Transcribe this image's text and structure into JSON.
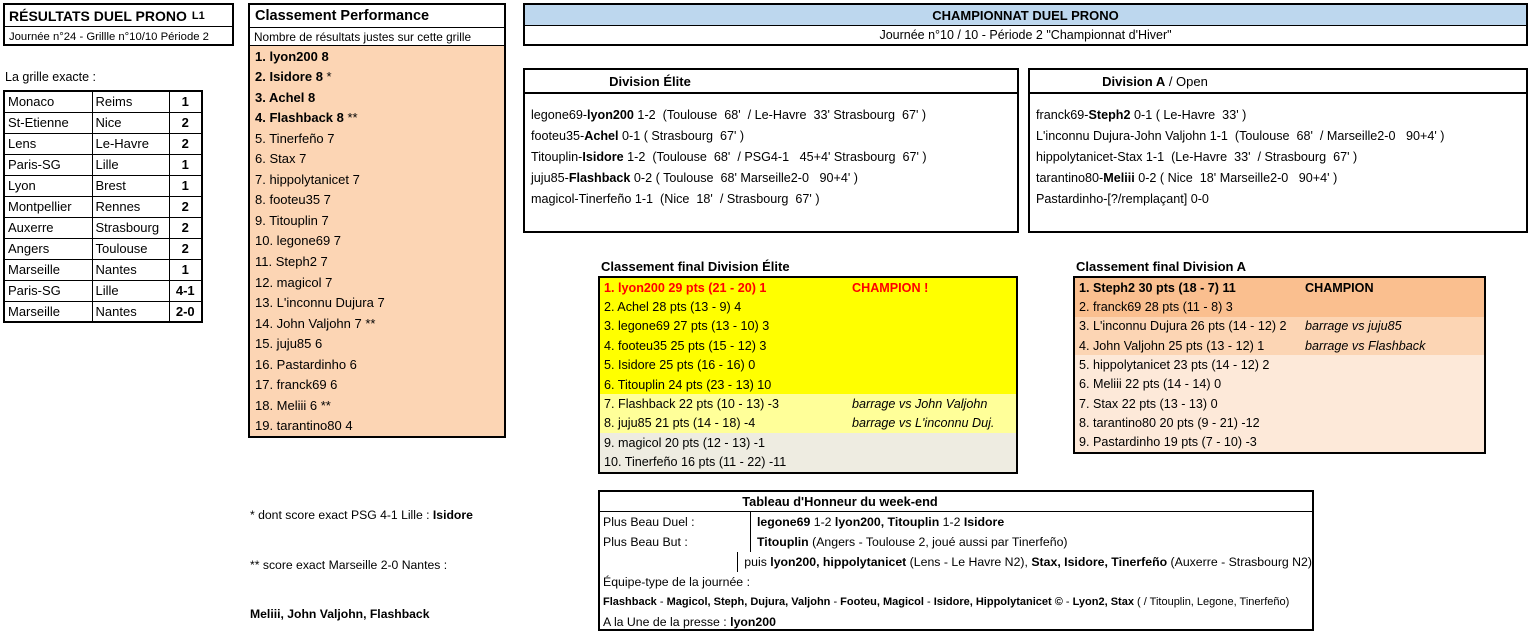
{
  "colors": {
    "yellow": "#FFFF00",
    "paleYellow": "#FFFF99",
    "beige": "#EEECE1",
    "orange": "#FFC000",
    "blue": "#BDD7EE",
    "peach": "#FCD5B4",
    "orangeT1": "#FABF8F",
    "orangeT2": "#FCD5B4",
    "orangeT3": "#FDE9D9",
    "red": "#FF0000"
  },
  "results": {
    "title": "RÉSULTATS DUEL PRONO",
    "league": "L1",
    "subtitle": "Journée n°24 - Grillle n°10/10 Période 2"
  },
  "grille": {
    "label": "La grille exacte :",
    "rows": [
      {
        "home": "Monaco",
        "away": "Reims",
        "result": "1",
        "highlight": "yellow"
      },
      {
        "home": "St-Etienne",
        "away": "Nice",
        "result": "2",
        "highlight": "yellow"
      },
      {
        "home": "Lens",
        "away": "Le-Havre",
        "result": "2",
        "highlight": "yellow"
      },
      {
        "home": "Paris-SG",
        "away": "Lille",
        "result": "1",
        "highlight": "yellow"
      },
      {
        "home": "Lyon",
        "away": "Brest",
        "result": "1",
        "highlight": "yellow"
      },
      {
        "home": "Montpellier",
        "away": "Rennes",
        "result": "2",
        "highlight": "yellow"
      },
      {
        "home": "Auxerre",
        "away": "Strasbourg",
        "result": "2",
        "highlight": "yellow"
      },
      {
        "home": "Angers",
        "away": "Toulouse",
        "result": "2",
        "highlight": "yellow"
      },
      {
        "home": "Marseille",
        "away": "Nantes",
        "result": "1",
        "highlight": "yellow"
      },
      {
        "home": "Paris-SG",
        "away": "Lille",
        "result": "4-1",
        "highlight": "orange"
      },
      {
        "home": "Marseille",
        "away": "Nantes",
        "result": "2-0",
        "highlight": "orange"
      }
    ]
  },
  "performance": {
    "title": "Classement Performance",
    "subtitle": "Nombre de résultats justes sur cette grille",
    "rows": [
      {
        "segments": [
          {
            "t": "1. lyon200 8",
            "b": true
          }
        ]
      },
      {
        "segments": [
          {
            "t": "2. Isidore 8 ",
            "b": true
          },
          {
            "t": "*"
          }
        ]
      },
      {
        "segments": [
          {
            "t": "3. Achel 8",
            "b": true
          }
        ]
      },
      {
        "segments": [
          {
            "t": "4. Flashback 8 ",
            "b": true
          },
          {
            "t": "**"
          }
        ]
      },
      {
        "segments": [
          {
            "t": "5. Tinerfeño 7"
          }
        ]
      },
      {
        "segments": [
          {
            "t": "6. Stax 7"
          }
        ]
      },
      {
        "segments": [
          {
            "t": "7. hippolytanicet 7"
          }
        ]
      },
      {
        "segments": [
          {
            "t": "8. footeu35 7"
          }
        ]
      },
      {
        "segments": [
          {
            "t": "9. Titouplin 7"
          }
        ]
      },
      {
        "segments": [
          {
            "t": "10. legone69 7"
          }
        ]
      },
      {
        "segments": [
          {
            "t": "11. Steph2 7"
          }
        ]
      },
      {
        "segments": [
          {
            "t": "12. magicol 7"
          }
        ]
      },
      {
        "segments": [
          {
            "t": "13. L'inconnu Dujura 7"
          }
        ]
      },
      {
        "segments": [
          {
            "t": "14. John Valjohn 7 **"
          }
        ]
      },
      {
        "segments": [
          {
            "t": "15. juju85 6"
          }
        ]
      },
      {
        "segments": [
          {
            "t": "16. Pastardinho 6"
          }
        ]
      },
      {
        "segments": [
          {
            "t": "17. franck69 6"
          }
        ]
      },
      {
        "segments": [
          {
            "t": "18. Meliii 6 **"
          }
        ]
      },
      {
        "segments": [
          {
            "t": "19. tarantino80 4"
          }
        ]
      }
    ]
  },
  "footnotes": {
    "lines": [
      {
        "segments": [
          {
            "t": "* dont score exact PSG 4-1 Lille : "
          },
          {
            "t": "Isidore",
            "b": true
          }
        ]
      },
      {
        "segments": [
          {
            "t": "** score exact Marseille 2-0 Nantes :"
          }
        ]
      },
      {
        "segments": [
          {
            "t": "Meliii, John Valjohn, Flashback",
            "b": true
          }
        ]
      }
    ]
  },
  "championship": {
    "title": "CHAMPIONNAT DUEL PRONO",
    "subtitle": "Journée n°10 / 10 - Période 2 \"Championnat d'Hiver\""
  },
  "divisionElite": {
    "header": [
      {
        "t": "Division Élite",
        "b": true
      }
    ],
    "matches": [
      {
        "segments": [
          {
            "t": "legone69-"
          },
          {
            "t": "lyon200",
            "b": true
          },
          {
            "t": " 1-2  (Toulouse  68'  / Le-Havre  33' Strasbourg  67' )"
          }
        ]
      },
      {
        "segments": [
          {
            "t": "footeu35-"
          },
          {
            "t": "Achel",
            "b": true
          },
          {
            "t": " 0-1 ( Strasbourg  67' )"
          }
        ]
      },
      {
        "segments": [
          {
            "t": "Titouplin-"
          },
          {
            "t": "Isidore",
            "b": true
          },
          {
            "t": " 1-2  (Toulouse  68'  / PSG4-1   45+4' Strasbourg  67' )"
          }
        ]
      },
      {
        "segments": [
          {
            "t": "juju85-"
          },
          {
            "t": "Flashback",
            "b": true
          },
          {
            "t": " 0-2 ( Toulouse  68' Marseille2-0   90+4' )"
          }
        ]
      },
      {
        "segments": [
          {
            "t": "magicol-Tinerfeño 1-1  (Nice  18'  / Strasbourg  67' )"
          }
        ]
      }
    ]
  },
  "divisionA": {
    "header": [
      {
        "t": "Division A",
        "b": true
      },
      {
        "t": " / Open"
      }
    ],
    "matches": [
      {
        "segments": [
          {
            "t": "franck69-"
          },
          {
            "t": "Steph2",
            "b": true
          },
          {
            "t": " 0-1 ( Le-Havre  33' )"
          }
        ]
      },
      {
        "segments": [
          {
            "t": "L'inconnu Dujura-John Valjohn 1-1  (Toulouse  68'  / Marseille2-0   90+4' )"
          }
        ]
      },
      {
        "segments": [
          {
            "t": "hippolytanicet-Stax 1-1  (Le-Havre  33'  / Strasbourg  67' )"
          }
        ]
      },
      {
        "segments": [
          {
            "t": "tarantino80-"
          },
          {
            "t": "Meliii",
            "b": true
          },
          {
            "t": " 0-2 ( Nice  18' Marseille2-0   90+4' )"
          }
        ]
      },
      {
        "segments": [
          {
            "t": "Pastardinho-[?/remplaçant] 0-0"
          }
        ]
      }
    ]
  },
  "clsElite": {
    "title": "Classement final Division Élite",
    "rows": [
      {
        "main": [
          {
            "t": "1. lyon200 29 pts (21 - 20) 1",
            "b": true,
            "c": "#FF0000"
          }
        ],
        "note": [
          {
            "t": "CHAMPION !",
            "b": true,
            "c": "#FF0000"
          }
        ]
      },
      {
        "main": [
          {
            "t": "2. Achel 28 pts (13 - 9) 4"
          }
        ],
        "note": []
      },
      {
        "main": [
          {
            "t": "3. legone69 27 pts (13 - 10) 3"
          }
        ],
        "note": []
      },
      {
        "main": [
          {
            "t": "4. footeu35 25 pts (15 - 12) 3"
          }
        ],
        "note": []
      },
      {
        "main": [
          {
            "t": "5. Isidore 25 pts (16 - 16) 0"
          }
        ],
        "note": []
      },
      {
        "main": [
          {
            "t": "6. Titouplin 24 pts (23 - 13) 10"
          }
        ],
        "note": []
      },
      {
        "main": [
          {
            "t": "7. Flashback 22 pts (10 - 13) -3"
          }
        ],
        "note": [
          {
            "t": "barrage vs John Valjohn",
            "i": true
          }
        ]
      },
      {
        "main": [
          {
            "t": "8. juju85 21 pts (14 - 18) -4"
          }
        ],
        "note": [
          {
            "t": "barrage vs L'inconnu Duj.",
            "i": true
          }
        ]
      },
      {
        "main": [
          {
            "t": "9. magicol 20 pts (12 - 13) -1"
          }
        ],
        "note": []
      },
      {
        "main": [
          {
            "t": "10. Tinerfeño 16 pts (11 - 22) -11"
          }
        ],
        "note": []
      }
    ]
  },
  "clsA": {
    "title": "Classement final Division A",
    "rows": [
      {
        "main": [
          {
            "t": "1. Steph2 30 pts (18 - 7) 11",
            "b": true
          }
        ],
        "note": [
          {
            "t": "CHAMPION",
            "b": true
          }
        ]
      },
      {
        "main": [
          {
            "t": "2. franck69 28 pts (11 - 8) 3"
          }
        ],
        "note": []
      },
      {
        "main": [
          {
            "t": "3. L'inconnu Dujura 26 pts (14 - 12) 2"
          }
        ],
        "note": [
          {
            "t": "barrage vs juju85",
            "i": true
          }
        ]
      },
      {
        "main": [
          {
            "t": "4. John Valjohn 25 pts (13 - 12) 1"
          }
        ],
        "note": [
          {
            "t": "barrage vs Flashback",
            "i": true
          }
        ]
      },
      {
        "main": [
          {
            "t": "5. hippolytanicet 23 pts (14 - 12) 2"
          }
        ],
        "note": []
      },
      {
        "main": [
          {
            "t": "6. Meliii 22 pts (14 - 14) 0"
          }
        ],
        "note": []
      },
      {
        "main": [
          {
            "t": "7. Stax 22 pts (13 - 13) 0"
          }
        ],
        "note": []
      },
      {
        "main": [
          {
            "t": "8. tarantino80 20 pts (9 - 21) -12"
          }
        ],
        "note": []
      },
      {
        "main": [
          {
            "t": "9. Pastardinho 19 pts (7 - 10) -3"
          }
        ],
        "note": []
      }
    ]
  },
  "honneur": {
    "title": "Tableau d'Honneur du week-end",
    "rows": [
      {
        "label": "Plus Beau Duel : ",
        "value": [
          {
            "t": "legone69",
            "b": true
          },
          {
            "t": " 1-2 "
          },
          {
            "t": "lyon200, Titouplin",
            "b": true
          },
          {
            "t": " 1-2 "
          },
          {
            "t": "Isidore",
            "b": true
          }
        ]
      },
      {
        "label": "Plus Beau But : ",
        "value": [
          {
            "t": "Titouplin",
            "b": true
          },
          {
            "t": " (Angers - Toulouse 2, joué aussi par Tinerfeño)"
          }
        ]
      },
      {
        "label": "",
        "value": [
          {
            "t": "puis "
          },
          {
            "t": "lyon200, hippolytanicet",
            "b": true
          },
          {
            "t": " (Lens - Le Havre N2), "
          },
          {
            "t": "Stax, Isidore, Tinerfeño",
            "b": true
          },
          {
            "t": " (Auxerre - Strasbourg N2)"
          }
        ]
      }
    ],
    "lines": [
      {
        "segments": [
          {
            "t": "Équipe-type de la journée :"
          }
        ]
      },
      {
        "segments": [
          {
            "t": "Flashback",
            "b": true
          },
          {
            "t": " - "
          },
          {
            "t": "Magicol, Steph, Dujura, Valjohn",
            "b": true
          },
          {
            "t": " - "
          },
          {
            "t": "Footeu, Magicol",
            "b": true
          },
          {
            "t": " - "
          },
          {
            "t": "Isidore, Hippolytanicet ©",
            "b": true
          },
          {
            "t": " - "
          },
          {
            "t": "Lyon2, Stax",
            "b": true
          },
          {
            "t": " ( / Titouplin, Legone, Tinerfeño)"
          }
        ]
      },
      {
        "segments": [
          {
            "t": "A la Une de la presse : "
          },
          {
            "t": "lyon200",
            "b": true
          }
        ]
      }
    ]
  }
}
